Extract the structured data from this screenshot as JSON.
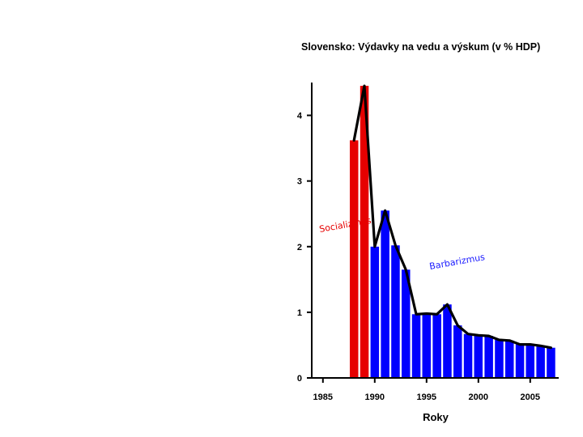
{
  "chart_data": {
    "type": "bar",
    "title": "Slovensko: Výdavky na vedu a výskum (v % HDP)",
    "xlabel": "Roky",
    "ylabel": "",
    "xlim": [
      1983.5,
      2008
    ],
    "ylim": [
      0,
      4.5
    ],
    "xticks": [
      1985,
      1990,
      1995,
      2000,
      2005
    ],
    "yticks": [
      0,
      1,
      2,
      3,
      4
    ],
    "series": [
      {
        "name": "Socializmus",
        "color": "#e60000",
        "x": [
          1988,
          1989
        ],
        "values": [
          3.62,
          4.45
        ]
      },
      {
        "name": "Barbarizmus",
        "color": "#0000ff",
        "x": [
          1990,
          1991,
          1992,
          1993,
          1994,
          1995,
          1996,
          1997,
          1998,
          1999,
          2000,
          2001,
          2002,
          2003,
          2004,
          2005,
          2006,
          2007
        ],
        "values": [
          2.0,
          2.55,
          2.02,
          1.65,
          0.97,
          0.98,
          0.97,
          1.12,
          0.8,
          0.67,
          0.65,
          0.64,
          0.58,
          0.57,
          0.51,
          0.51,
          0.49,
          0.46
        ]
      }
    ],
    "annotations": [
      {
        "text": "Socializmus",
        "series": "Socializmus"
      },
      {
        "text": "Barbarizmus",
        "series": "Barbarizmus"
      }
    ]
  }
}
